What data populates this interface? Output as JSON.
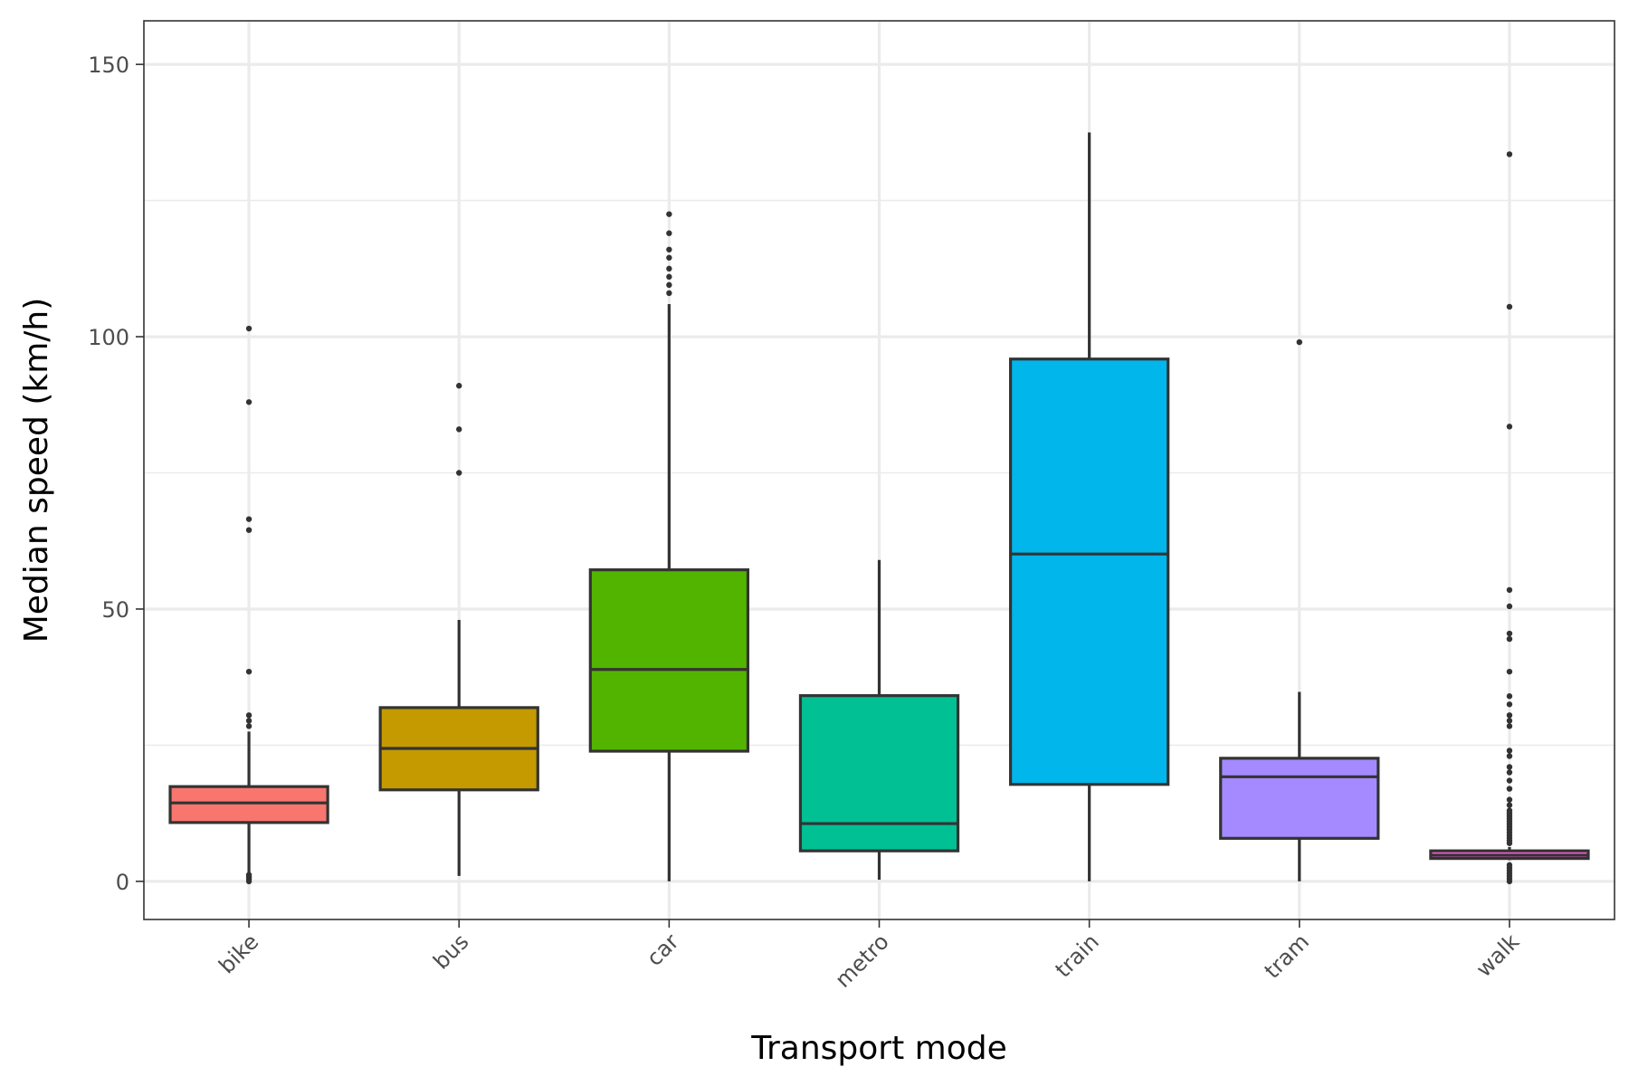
{
  "chart_data": {
    "type": "box",
    "xlabel": "Transport mode",
    "ylabel": "Median speed (km/h)",
    "ylim": [
      -7,
      158
    ],
    "y_major_ticks": [
      0,
      50,
      100,
      150
    ],
    "y_minor_ticks": [
      25,
      75,
      125
    ],
    "grid": true,
    "legend": "none",
    "categories": [
      "bike",
      "bus",
      "car",
      "metro",
      "train",
      "tram",
      "walk"
    ],
    "boxes": [
      {
        "category": "bike",
        "color": "#F8766D",
        "whisker_low": 0.5,
        "q1": 10.8,
        "median": 14.4,
        "q3": 17.4,
        "whisker_high": 27.5,
        "outliers": [
          0,
          0.4,
          0.8,
          1.2,
          28.5,
          29.5,
          30.5,
          38.5,
          64.5,
          66.5,
          88,
          101.5
        ]
      },
      {
        "category": "bus",
        "color": "#C49A00",
        "whisker_low": 1,
        "q1": 16.8,
        "median": 24.4,
        "q3": 31.9,
        "whisker_high": 48,
        "outliers": [
          75,
          83,
          91
        ]
      },
      {
        "category": "car",
        "color": "#53B400",
        "whisker_low": 0,
        "q1": 23.9,
        "median": 38.9,
        "q3": 57.2,
        "whisker_high": 106,
        "outliers": [
          108,
          109.5,
          111,
          112.5,
          114.5,
          116,
          119,
          122.5
        ]
      },
      {
        "category": "metro",
        "color": "#00C094",
        "whisker_low": 0.3,
        "q1": 5.6,
        "median": 10.6,
        "q3": 34.1,
        "whisker_high": 59,
        "outliers": []
      },
      {
        "category": "train",
        "color": "#00B6EB",
        "whisker_low": 0,
        "q1": 17.8,
        "median": 60.1,
        "q3": 95.9,
        "whisker_high": 137.5,
        "outliers": []
      },
      {
        "category": "tram",
        "color": "#A58AFF",
        "whisker_low": 0,
        "q1": 7.9,
        "median": 19.2,
        "q3": 22.6,
        "whisker_high": 34.8,
        "outliers": [
          99
        ]
      },
      {
        "category": "walk",
        "color": "#FB61D7",
        "whisker_low": 3.9,
        "q1": 4.2,
        "median": 4.8,
        "q3": 5.6,
        "whisker_high": 6.3,
        "outliers": [
          0,
          0.5,
          1,
          1.5,
          2,
          2.5,
          3,
          7,
          7.5,
          8,
          8.5,
          9,
          9.5,
          10,
          10.5,
          11,
          11.5,
          12,
          12.5,
          13,
          14,
          15,
          17,
          18.5,
          20,
          21,
          23,
          24,
          28.5,
          29.5,
          30.5,
          32.5,
          34,
          38.5,
          44.5,
          45.5,
          50.5,
          53.5,
          83.5,
          105.5,
          133.5
        ]
      }
    ]
  }
}
